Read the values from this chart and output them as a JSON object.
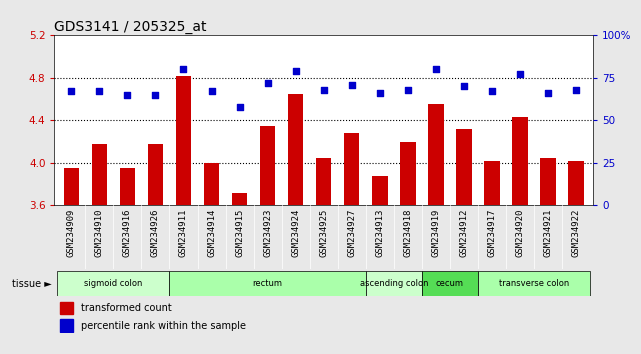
{
  "title": "GDS3141 / 205325_at",
  "samples": [
    "GSM234909",
    "GSM234910",
    "GSM234916",
    "GSM234926",
    "GSM234911",
    "GSM234914",
    "GSM234915",
    "GSM234923",
    "GSM234924",
    "GSM234925",
    "GSM234927",
    "GSM234913",
    "GSM234918",
    "GSM234919",
    "GSM234912",
    "GSM234917",
    "GSM234920",
    "GSM234921",
    "GSM234922"
  ],
  "bar_values": [
    3.95,
    4.18,
    3.95,
    4.18,
    4.82,
    4.0,
    3.72,
    4.35,
    4.65,
    4.05,
    4.28,
    3.88,
    4.2,
    4.55,
    4.32,
    4.02,
    4.43,
    4.05,
    4.02
  ],
  "dot_values": [
    67,
    67,
    65,
    65,
    80,
    67,
    58,
    72,
    79,
    68,
    71,
    66,
    68,
    80,
    70,
    67,
    77,
    66,
    68
  ],
  "bar_color": "#cc0000",
  "dot_color": "#0000cc",
  "ylim_left": [
    3.6,
    5.2
  ],
  "ylim_right": [
    0,
    100
  ],
  "yticks_left": [
    3.6,
    4.0,
    4.4,
    4.8,
    5.2
  ],
  "yticks_right": [
    0,
    25,
    50,
    75,
    100
  ],
  "ytick_labels_right": [
    "0",
    "25",
    "50",
    "75",
    "100%"
  ],
  "hlines": [
    4.0,
    4.4,
    4.8
  ],
  "tissue_groups": [
    {
      "label": "sigmoid colon",
      "start": 0,
      "end": 4,
      "color": "#ccffcc"
    },
    {
      "label": "rectum",
      "start": 4,
      "end": 11,
      "color": "#aaffaa"
    },
    {
      "label": "ascending colon",
      "start": 11,
      "end": 13,
      "color": "#ccffcc"
    },
    {
      "label": "cecum",
      "start": 13,
      "end": 15,
      "color": "#55dd55"
    },
    {
      "label": "transverse colon",
      "start": 15,
      "end": 19,
      "color": "#aaffaa"
    }
  ],
  "tissue_label": "tissue",
  "legend_bar": "transformed count",
  "legend_dot": "percentile rank within the sample",
  "background_color": "#e8e8e8",
  "plot_bg": "#ffffff",
  "title_fontsize": 10,
  "tick_fontsize": 6.5,
  "bar_width": 0.55
}
